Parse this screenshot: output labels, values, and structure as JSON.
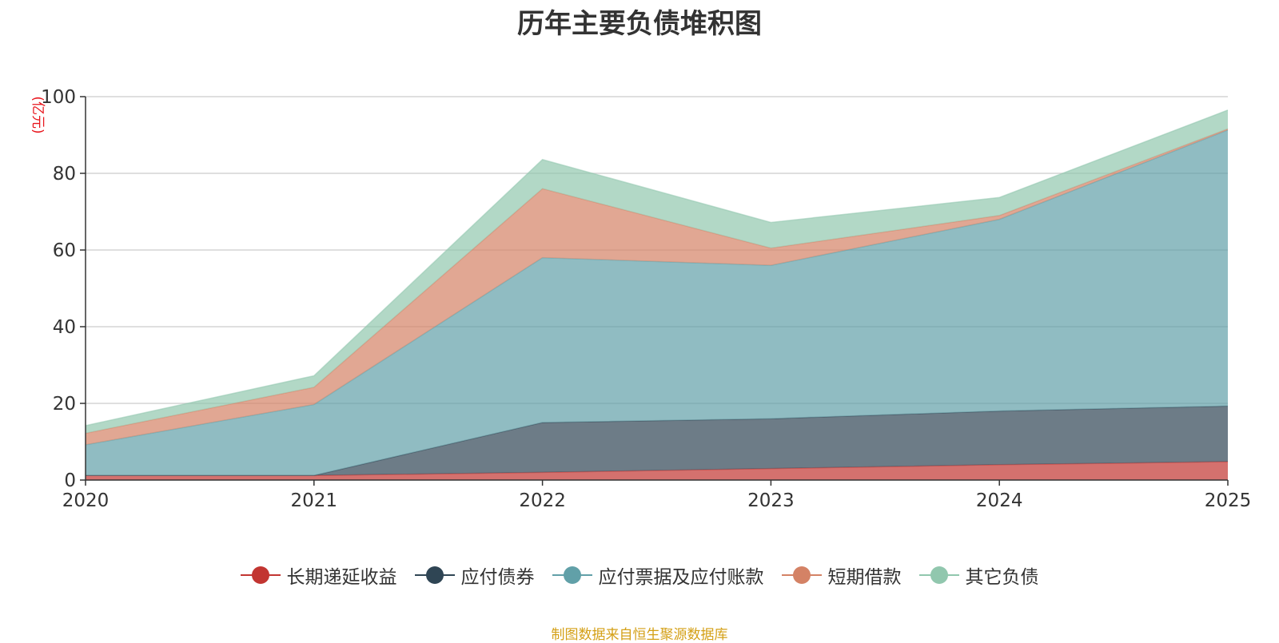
{
  "chart_data": {
    "type": "area",
    "stacked": true,
    "title": "历年主要负债堆积图",
    "ylabel": "(亿元)",
    "xlabel": "",
    "categories": [
      "2020",
      "2021",
      "2022",
      "2023",
      "2024",
      "2025"
    ],
    "ylim": [
      0,
      100
    ],
    "yticks": [
      0,
      20,
      40,
      60,
      80,
      100
    ],
    "grid": true,
    "legend_position": "bottom",
    "series": [
      {
        "name": "长期递延收益",
        "color": "#c23531",
        "values": [
          1.2,
          1.2,
          2.0,
          3.0,
          4.0,
          4.8
        ]
      },
      {
        "name": "应付债券",
        "color": "#2f4554",
        "values": [
          0,
          0,
          13.0,
          13.0,
          14.0,
          14.5
        ]
      },
      {
        "name": "应付票据及应付账款",
        "color": "#61a0a8",
        "values": [
          8.0,
          18.5,
          43.0,
          40.0,
          50.0,
          72.0
        ]
      },
      {
        "name": "短期借款",
        "color": "#d48265",
        "values": [
          3.0,
          4.5,
          18.0,
          4.5,
          1.0,
          0.3
        ]
      },
      {
        "name": "其它负债",
        "color": "#91c7ae",
        "values": [
          2.0,
          3.0,
          7.6,
          6.7,
          4.7,
          4.9
        ]
      }
    ]
  },
  "source_note": "制图数据来自恒生聚源数据库"
}
